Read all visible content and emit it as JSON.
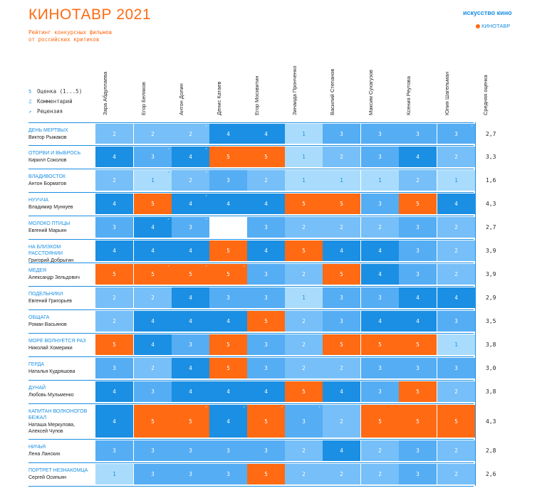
{
  "header": {
    "title": "КИНОТАВР 2021",
    "subtitle_line1": "Рейтинг конкурсных фильмов",
    "subtitle_line2": "от российских критиков",
    "logo_ik": "искусство кино",
    "logo_kt": "КИНОТАВР"
  },
  "legend": [
    {
      "glyph": "5",
      "label": "Оценка (1...5)"
    },
    {
      "glyph": "♫",
      "label": "Комментарий"
    },
    {
      "glyph": "↗",
      "label": "Рецензия"
    }
  ],
  "colors": {
    "1": "#a9dcfc",
    "2": "#76bff8",
    "3": "#55adf4",
    "4": "#1a8fe3",
    "5": "#ff6a13",
    "blank": "#ffffff",
    "accent": "#ff6a13",
    "link": "#1a8fe3"
  },
  "chart_data": {
    "type": "heatmap",
    "title": "КИНОТАВР 2021",
    "subtitle": "Рейтинг конкурсных фильмов от российских критиков",
    "critics": [
      "Зара Абдуллаева",
      "Егор Беляков",
      "Антон Долин",
      "Денис Катаев",
      "Егор Москвитин",
      "Зинаида Пронченко",
      "Василий Степанов",
      "Максим Сухагузов",
      "Ксения Реутова",
      "Юлия Шагельман"
    ],
    "avg_label": "Средняя оценка",
    "films": [
      {
        "title": "ДЕНЬ МЕРТВЫХ",
        "director": "Виктор Рыжаков",
        "scores": [
          2,
          2,
          2,
          4,
          4,
          1,
          3,
          3,
          3,
          3
        ],
        "avg": "2,7"
      },
      {
        "title": "ОТОРВИ И ВЫБРОСЬ",
        "director": "Кирилл Соколов",
        "scores": [
          4,
          3,
          4,
          5,
          5,
          1,
          2,
          3,
          4,
          2
        ],
        "avg": "3,3"
      },
      {
        "title": "ВЛАДИВОСТОК",
        "director": "Антон Борматов",
        "scores": [
          2,
          1,
          2,
          3,
          2,
          1,
          1,
          1,
          2,
          1
        ],
        "avg": "1,6"
      },
      {
        "title": "НУУЧЧА",
        "director": "Владимир Мункуев",
        "scores": [
          4,
          5,
          4,
          4,
          4,
          5,
          5,
          3,
          5,
          4
        ],
        "avg": "4,3"
      },
      {
        "title": "МОЛОКО ПТИЦЫ",
        "director": "Евгений Марьян",
        "scores": [
          3,
          4,
          3,
          null,
          3,
          2,
          2,
          2,
          3,
          2
        ],
        "avg": "2,7"
      },
      {
        "title": "НА БЛИЗКОМ РАССТОЯНИИ",
        "director": "Григорий Добрыгин",
        "scores": [
          4,
          4,
          4,
          5,
          4,
          5,
          4,
          4,
          3,
          2
        ],
        "avg": "3,9"
      },
      {
        "title": "МЕДЕЯ",
        "director": "Александр Зельдович",
        "scores": [
          5,
          5,
          5,
          5,
          3,
          2,
          5,
          4,
          3,
          2
        ],
        "avg": "3,9"
      },
      {
        "title": "ПОДЕЛЬНИКИ",
        "director": "Евгений Григорьев",
        "scores": [
          2,
          2,
          4,
          3,
          3,
          1,
          3,
          3,
          4,
          4
        ],
        "avg": "2,9"
      },
      {
        "title": "ОБЩАГА",
        "director": "Роман Васьянов",
        "scores": [
          2,
          4,
          4,
          4,
          5,
          2,
          3,
          4,
          4,
          3
        ],
        "avg": "3,5"
      },
      {
        "title": "МОРЕ ВОЛНУЕТСЯ РАЗ",
        "director": "Николай Хомерики",
        "scores": [
          5,
          4,
          3,
          5,
          3,
          2,
          5,
          5,
          5,
          1
        ],
        "avg": "3,8"
      },
      {
        "title": "ГЕРДА",
        "director": "Наталья Кудряшова",
        "scores": [
          3,
          2,
          4,
          5,
          3,
          2,
          2,
          3,
          3,
          3
        ],
        "avg": "3,0"
      },
      {
        "title": "ДУНАЙ",
        "director": "Любовь Мульменко",
        "scores": [
          4,
          3,
          4,
          4,
          4,
          5,
          4,
          3,
          5,
          2
        ],
        "avg": "3,8"
      },
      {
        "title": "КАПИТАН ВОЛКОНОГОВ БЕЖАЛ",
        "director": "Наташа Меркулова, Алексей Чупов",
        "scores": [
          4,
          5,
          5,
          4,
          5,
          3,
          2,
          5,
          5,
          5
        ],
        "avg": "4,3"
      },
      {
        "title": "НИЧЬЯ",
        "director": "Лена Ланских",
        "scores": [
          3,
          3,
          3,
          3,
          3,
          2,
          4,
          2,
          3,
          2
        ],
        "avg": "2,8"
      },
      {
        "title": "ПОРТРЕТ НЕЗНАКОМЦА",
        "director": "Сергей Осипьян",
        "scores": [
          1,
          3,
          3,
          3,
          5,
          2,
          2,
          2,
          3,
          2
        ],
        "avg": "2,6"
      }
    ],
    "review_marks": [
      [
        2,
        9
      ],
      [
        1,
        2
      ],
      [
        1,
        2
      ],
      [
        2,
        2
      ],
      [
        1,
        2
      ],
      [],
      [
        1,
        2,
        3
      ],
      [],
      [],
      [],
      [],
      [],
      [
        2,
        3,
        4,
        5
      ],
      [],
      []
    ]
  }
}
